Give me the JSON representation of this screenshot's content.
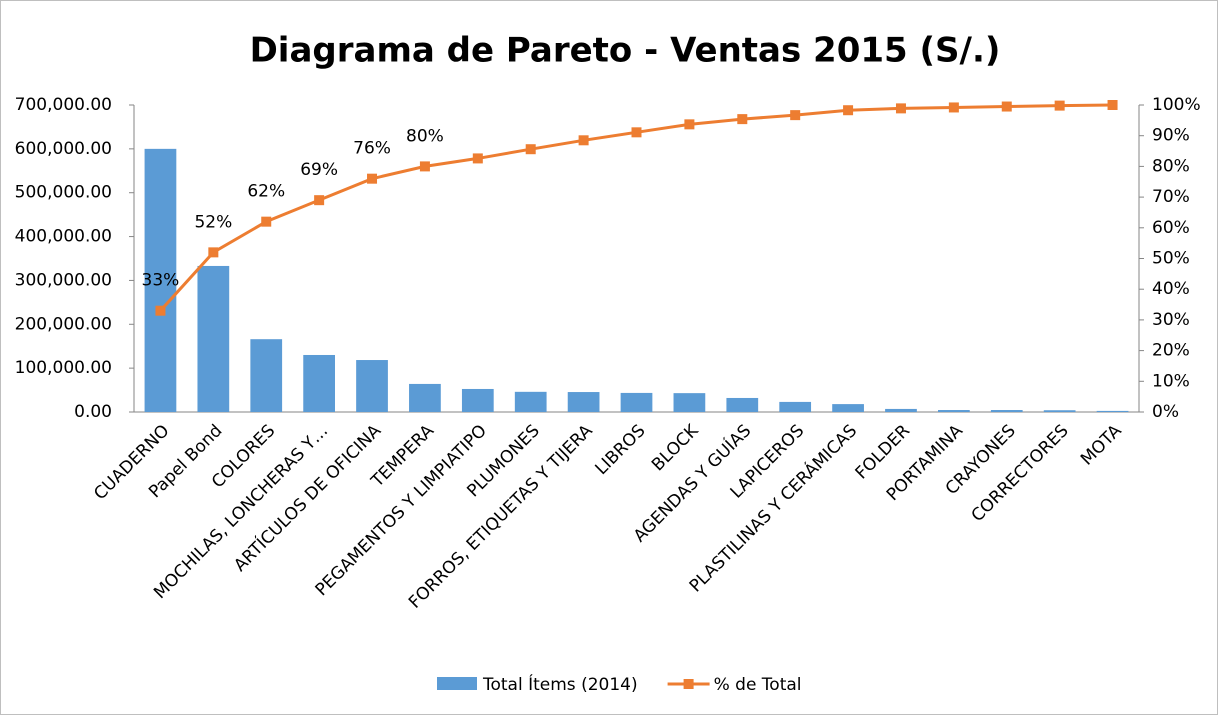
{
  "chart_data": {
    "type": "pareto",
    "title": "Diagrama de Pareto - Ventas 2015 (S/.)",
    "categories": [
      "CUADERNO",
      "Papel Bond",
      "COLORES",
      "MOCHILAS, LONCHERAS Y…",
      "ARTÍCULOS DE OFICINA",
      "TEMPERA",
      "PEGAMENTOS Y LIMPIATIPO",
      "PLUMONES",
      "FORROS, ETIQUETAS Y TIJERA",
      "LIBROS",
      "BLOCK",
      "AGENDAS Y GUÍAS",
      "LAPICEROS",
      "PLASTILINAS Y CERÁMICAS",
      "FOLDER",
      "PORTAMINA",
      "CRAYONES",
      "CORRECTORES",
      "MOTA"
    ],
    "series": [
      {
        "name": "Total Ítems (2014)",
        "color": "#5b9bd5",
        "kind": "bar",
        "axis": "y",
        "values": [
          600000,
          333000,
          166000,
          130000,
          118500,
          64000,
          52500,
          46000,
          45500,
          43500,
          43000,
          32000,
          23000,
          18000,
          7000,
          4500,
          4500,
          4000,
          2500
        ]
      },
      {
        "name": "% de Total",
        "color": "#ed7d31",
        "kind": "line",
        "axis": "y2",
        "values": [
          33,
          52,
          62,
          69,
          76,
          80,
          82.6,
          85.6,
          88.5,
          91.1,
          93.7,
          95.4,
          96.7,
          98.3,
          98.9,
          99.2,
          99.5,
          99.8,
          100
        ],
        "value_labels": [
          "33%",
          "52%",
          "62%",
          "69%",
          "76%",
          "80%",
          null,
          null,
          null,
          null,
          null,
          null,
          null,
          null,
          null,
          null,
          null,
          null,
          null
        ]
      }
    ],
    "ylim": [
      0,
      700000
    ],
    "yticks": [
      {
        "value": 0,
        "label": "0.00"
      },
      {
        "value": 100000,
        "label": "100,000.00"
      },
      {
        "value": 200000,
        "label": "200,000.00"
      },
      {
        "value": 300000,
        "label": "300,000.00"
      },
      {
        "value": 400000,
        "label": "400,000.00"
      },
      {
        "value": 500000,
        "label": "500,000.00"
      },
      {
        "value": 600000,
        "label": "600,000.00"
      },
      {
        "value": 700000,
        "label": "700,000.00"
      }
    ],
    "y2lim": [
      0,
      100
    ],
    "y2ticks": [
      {
        "value": 0,
        "label": "0%"
      },
      {
        "value": 10,
        "label": "10%"
      },
      {
        "value": 20,
        "label": "20%"
      },
      {
        "value": 30,
        "label": "30%"
      },
      {
        "value": 40,
        "label": "40%"
      },
      {
        "value": 50,
        "label": "50%"
      },
      {
        "value": 60,
        "label": "60%"
      },
      {
        "value": 70,
        "label": "70%"
      },
      {
        "value": 80,
        "label": "80%"
      },
      {
        "value": 90,
        "label": "90%"
      },
      {
        "value": 100,
        "label": "100%"
      }
    ],
    "legend": "bottom"
  }
}
